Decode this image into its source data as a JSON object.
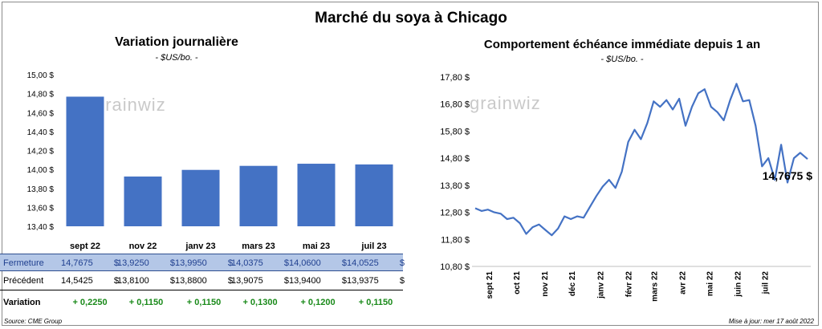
{
  "title": "Marché du soya à Chicago",
  "left_panel": {
    "title": "Variation  journalière",
    "subtitle": "- $US/bo. -",
    "watermark": "grainwiz"
  },
  "right_panel": {
    "title": "Comportement  échéance immédiate depuis 1 an",
    "subtitle": "- $US/bo. -",
    "watermark": "grainwiz",
    "last_label": "14,7675 $"
  },
  "table": {
    "rows": [
      {
        "label": "Fermeture",
        "values": [
          "14,7675",
          "13,9250",
          "13,9950",
          "14,0375",
          "14,0600",
          "14,0525"
        ],
        "unit": "$"
      },
      {
        "label": "Précédent",
        "values": [
          "14,5425",
          "13,8100",
          "13,8800",
          "13,9075",
          "13,9400",
          "13,9375"
        ],
        "unit": "$"
      },
      {
        "label": "Variation",
        "values": [
          "+ 0,2250",
          "+ 0,1150",
          "+ 0,1150",
          "+ 0,1300",
          "+ 0,1200",
          "+ 0,1150"
        ],
        "unit": ""
      }
    ]
  },
  "footer": {
    "source": "Source: CME Group",
    "updated": "Mise à jour: mer 17 août 2022"
  },
  "colors": {
    "bar": "#4472c4",
    "line": "#4472c4",
    "positive": "#1a8a1a",
    "table_header_bg": "#b4c7e7"
  },
  "chart_data": [
    {
      "type": "bar",
      "categories": [
        "sept 22",
        "nov 22",
        "janv 23",
        "mars 23",
        "mai 23",
        "juil 23"
      ],
      "values": [
        14.7675,
        13.925,
        13.995,
        14.0375,
        14.06,
        14.0525
      ],
      "ylim": [
        13.4,
        15.0
      ],
      "yticks": [
        13.4,
        13.6,
        13.8,
        14.0,
        14.2,
        14.4,
        14.6,
        14.8,
        15.0
      ],
      "ytick_labels": [
        "13,40 $",
        "13,60 $",
        "13,80 $",
        "14,00 $",
        "14,20 $",
        "14,40 $",
        "14,60 $",
        "14,80 $",
        "15,00 $"
      ],
      "grid": false
    },
    {
      "type": "line",
      "x_labels": [
        "sept 21",
        "oct 21",
        "nov 21",
        "déc 21",
        "janv 22",
        "févr 22",
        "mars 22",
        "avr 22",
        "mai 22",
        "juin 22",
        "juil 22"
      ],
      "ylim": [
        10.8,
        17.8
      ],
      "yticks": [
        10.8,
        11.8,
        12.8,
        13.8,
        14.8,
        15.8,
        16.8,
        17.8
      ],
      "ytick_labels": [
        "10,80 $",
        "11,80 $",
        "12,80 $",
        "13,80 $",
        "14,80 $",
        "15,80 $",
        "16,80 $",
        "17,80 $"
      ],
      "x": [
        "2021-08-17",
        "2021-08-24",
        "2021-08-31",
        "2021-09-07",
        "2021-09-14",
        "2021-09-21",
        "2021-09-28",
        "2021-10-05",
        "2021-10-12",
        "2021-10-19",
        "2021-10-26",
        "2021-11-02",
        "2021-11-09",
        "2021-11-16",
        "2021-11-23",
        "2021-11-30",
        "2021-12-07",
        "2021-12-14",
        "2021-12-21",
        "2021-12-28",
        "2022-01-04",
        "2022-01-11",
        "2022-01-18",
        "2022-01-25",
        "2022-02-01",
        "2022-02-08",
        "2022-02-15",
        "2022-02-22",
        "2022-03-01",
        "2022-03-08",
        "2022-03-15",
        "2022-03-22",
        "2022-03-29",
        "2022-04-05",
        "2022-04-12",
        "2022-04-19",
        "2022-04-26",
        "2022-05-03",
        "2022-05-10",
        "2022-05-17",
        "2022-05-24",
        "2022-05-31",
        "2022-06-07",
        "2022-06-14",
        "2022-06-21",
        "2022-06-28",
        "2022-07-05",
        "2022-07-12",
        "2022-07-19",
        "2022-07-26",
        "2022-08-02",
        "2022-08-09",
        "2022-08-17"
      ],
      "values": [
        12.95,
        12.85,
        12.9,
        12.8,
        12.75,
        12.55,
        12.6,
        12.4,
        12.0,
        12.25,
        12.35,
        12.15,
        11.95,
        12.2,
        12.65,
        12.55,
        12.65,
        12.6,
        13.0,
        13.4,
        13.75,
        14.0,
        13.7,
        14.3,
        15.4,
        15.85,
        15.5,
        16.1,
        16.9,
        16.7,
        16.95,
        16.6,
        17.0,
        16.0,
        16.7,
        17.2,
        17.35,
        16.7,
        16.5,
        16.2,
        16.95,
        17.55,
        16.9,
        16.95,
        16.0,
        14.5,
        14.8,
        14.0,
        15.3,
        13.9,
        14.8,
        15.0,
        14.7675
      ],
      "last_value": 14.7675,
      "grid": false
    }
  ]
}
